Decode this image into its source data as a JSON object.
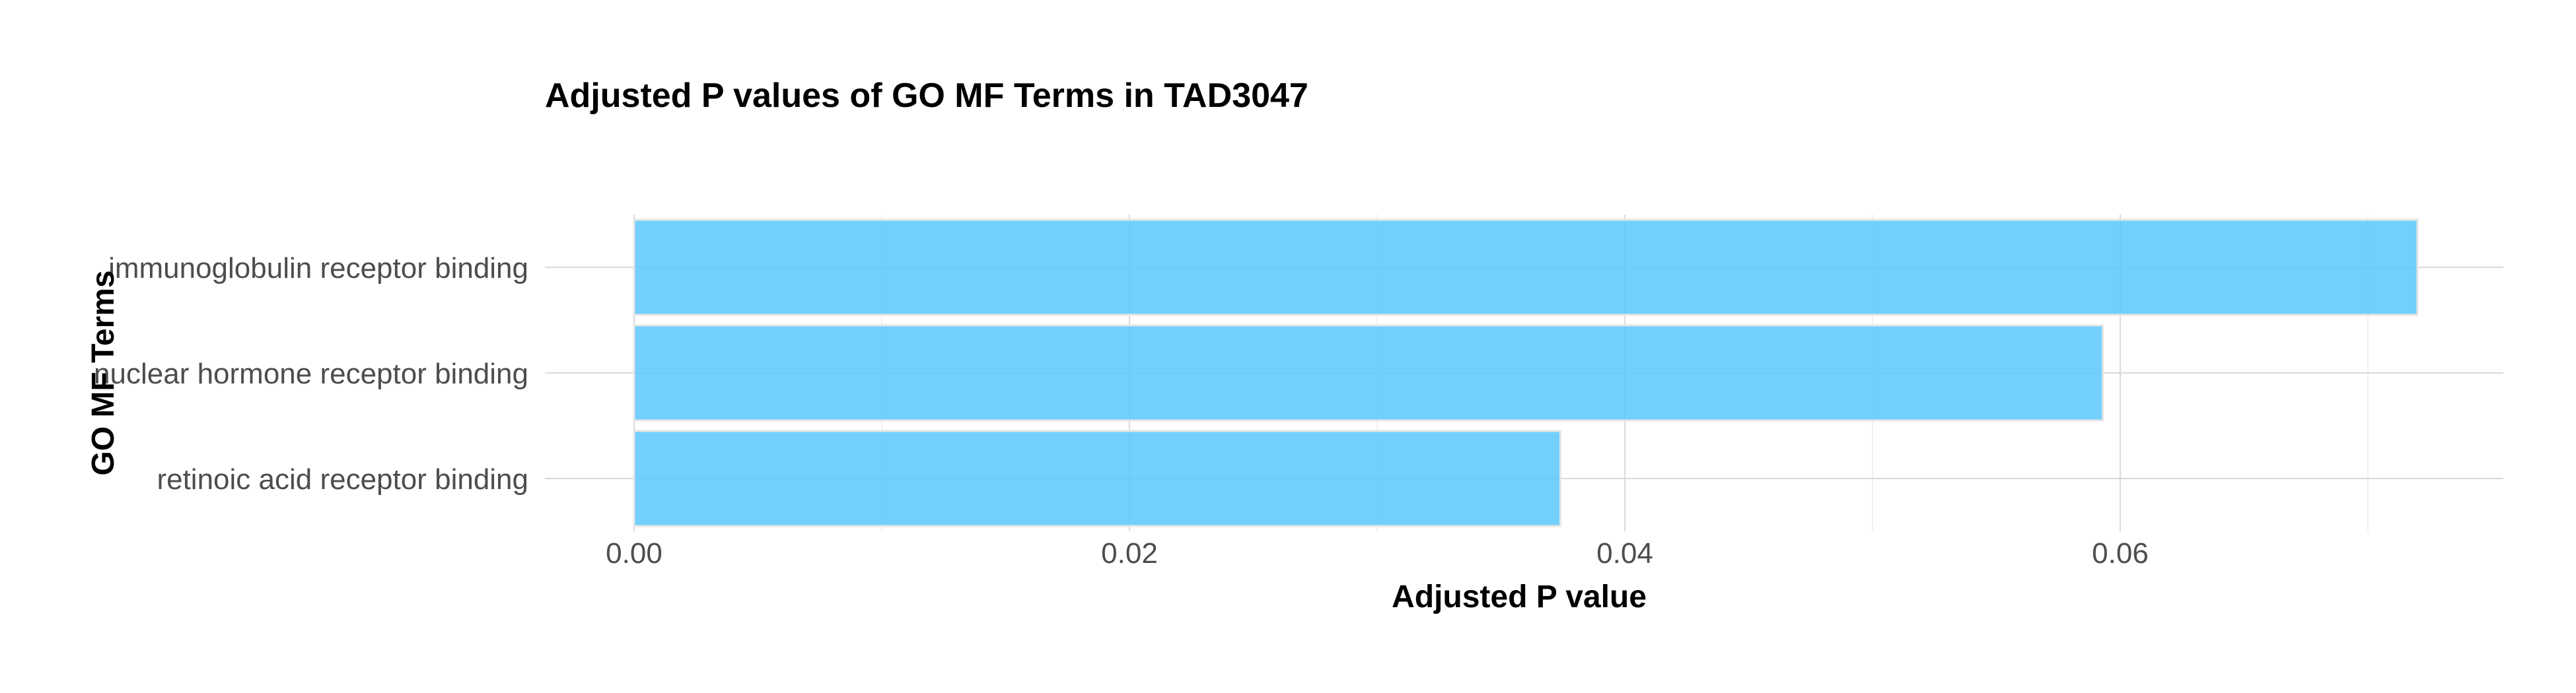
{
  "chart_data": {
    "type": "bar",
    "orientation": "horizontal",
    "title": "Adjusted P values of GO MF Terms in TAD3047",
    "xlabel": "Adjusted P value",
    "ylabel": "GO MF Terms",
    "categories": [
      "immunoglobulin receptor binding",
      "nuclear hormone receptor binding",
      "retinoic acid receptor binding"
    ],
    "values": [
      0.072,
      0.0593,
      0.0374
    ],
    "xlim": [
      0,
      0.0756
    ],
    "x_ticks": [
      0.0,
      0.02,
      0.04,
      0.06
    ],
    "x_tick_labels": [
      "0.00",
      "0.02",
      "0.04",
      "0.06"
    ],
    "x_minor_ticks": [
      0.01,
      0.03,
      0.05,
      0.07
    ],
    "grid": true,
    "legend": "none",
    "bar_color": "#5bc8fb"
  }
}
